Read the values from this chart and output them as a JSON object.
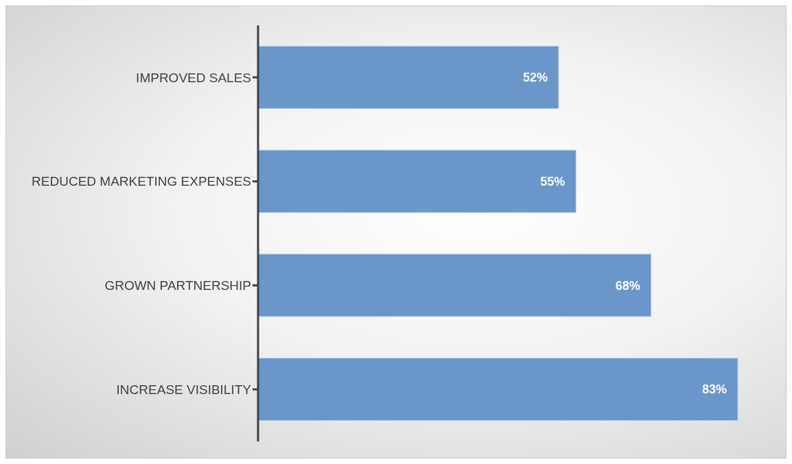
{
  "chart_data": {
    "type": "bar",
    "orientation": "horizontal",
    "categories": [
      "IMPROVED SALES",
      "REDUCED MARKETING EXPENSES",
      "GROWN PARTNERSHIP",
      "INCREASE VISIBILITY"
    ],
    "values": [
      52,
      55,
      68,
      83
    ],
    "value_labels": [
      "52%",
      "55%",
      "68%",
      "83%"
    ],
    "color": "#6a96c9"
  }
}
